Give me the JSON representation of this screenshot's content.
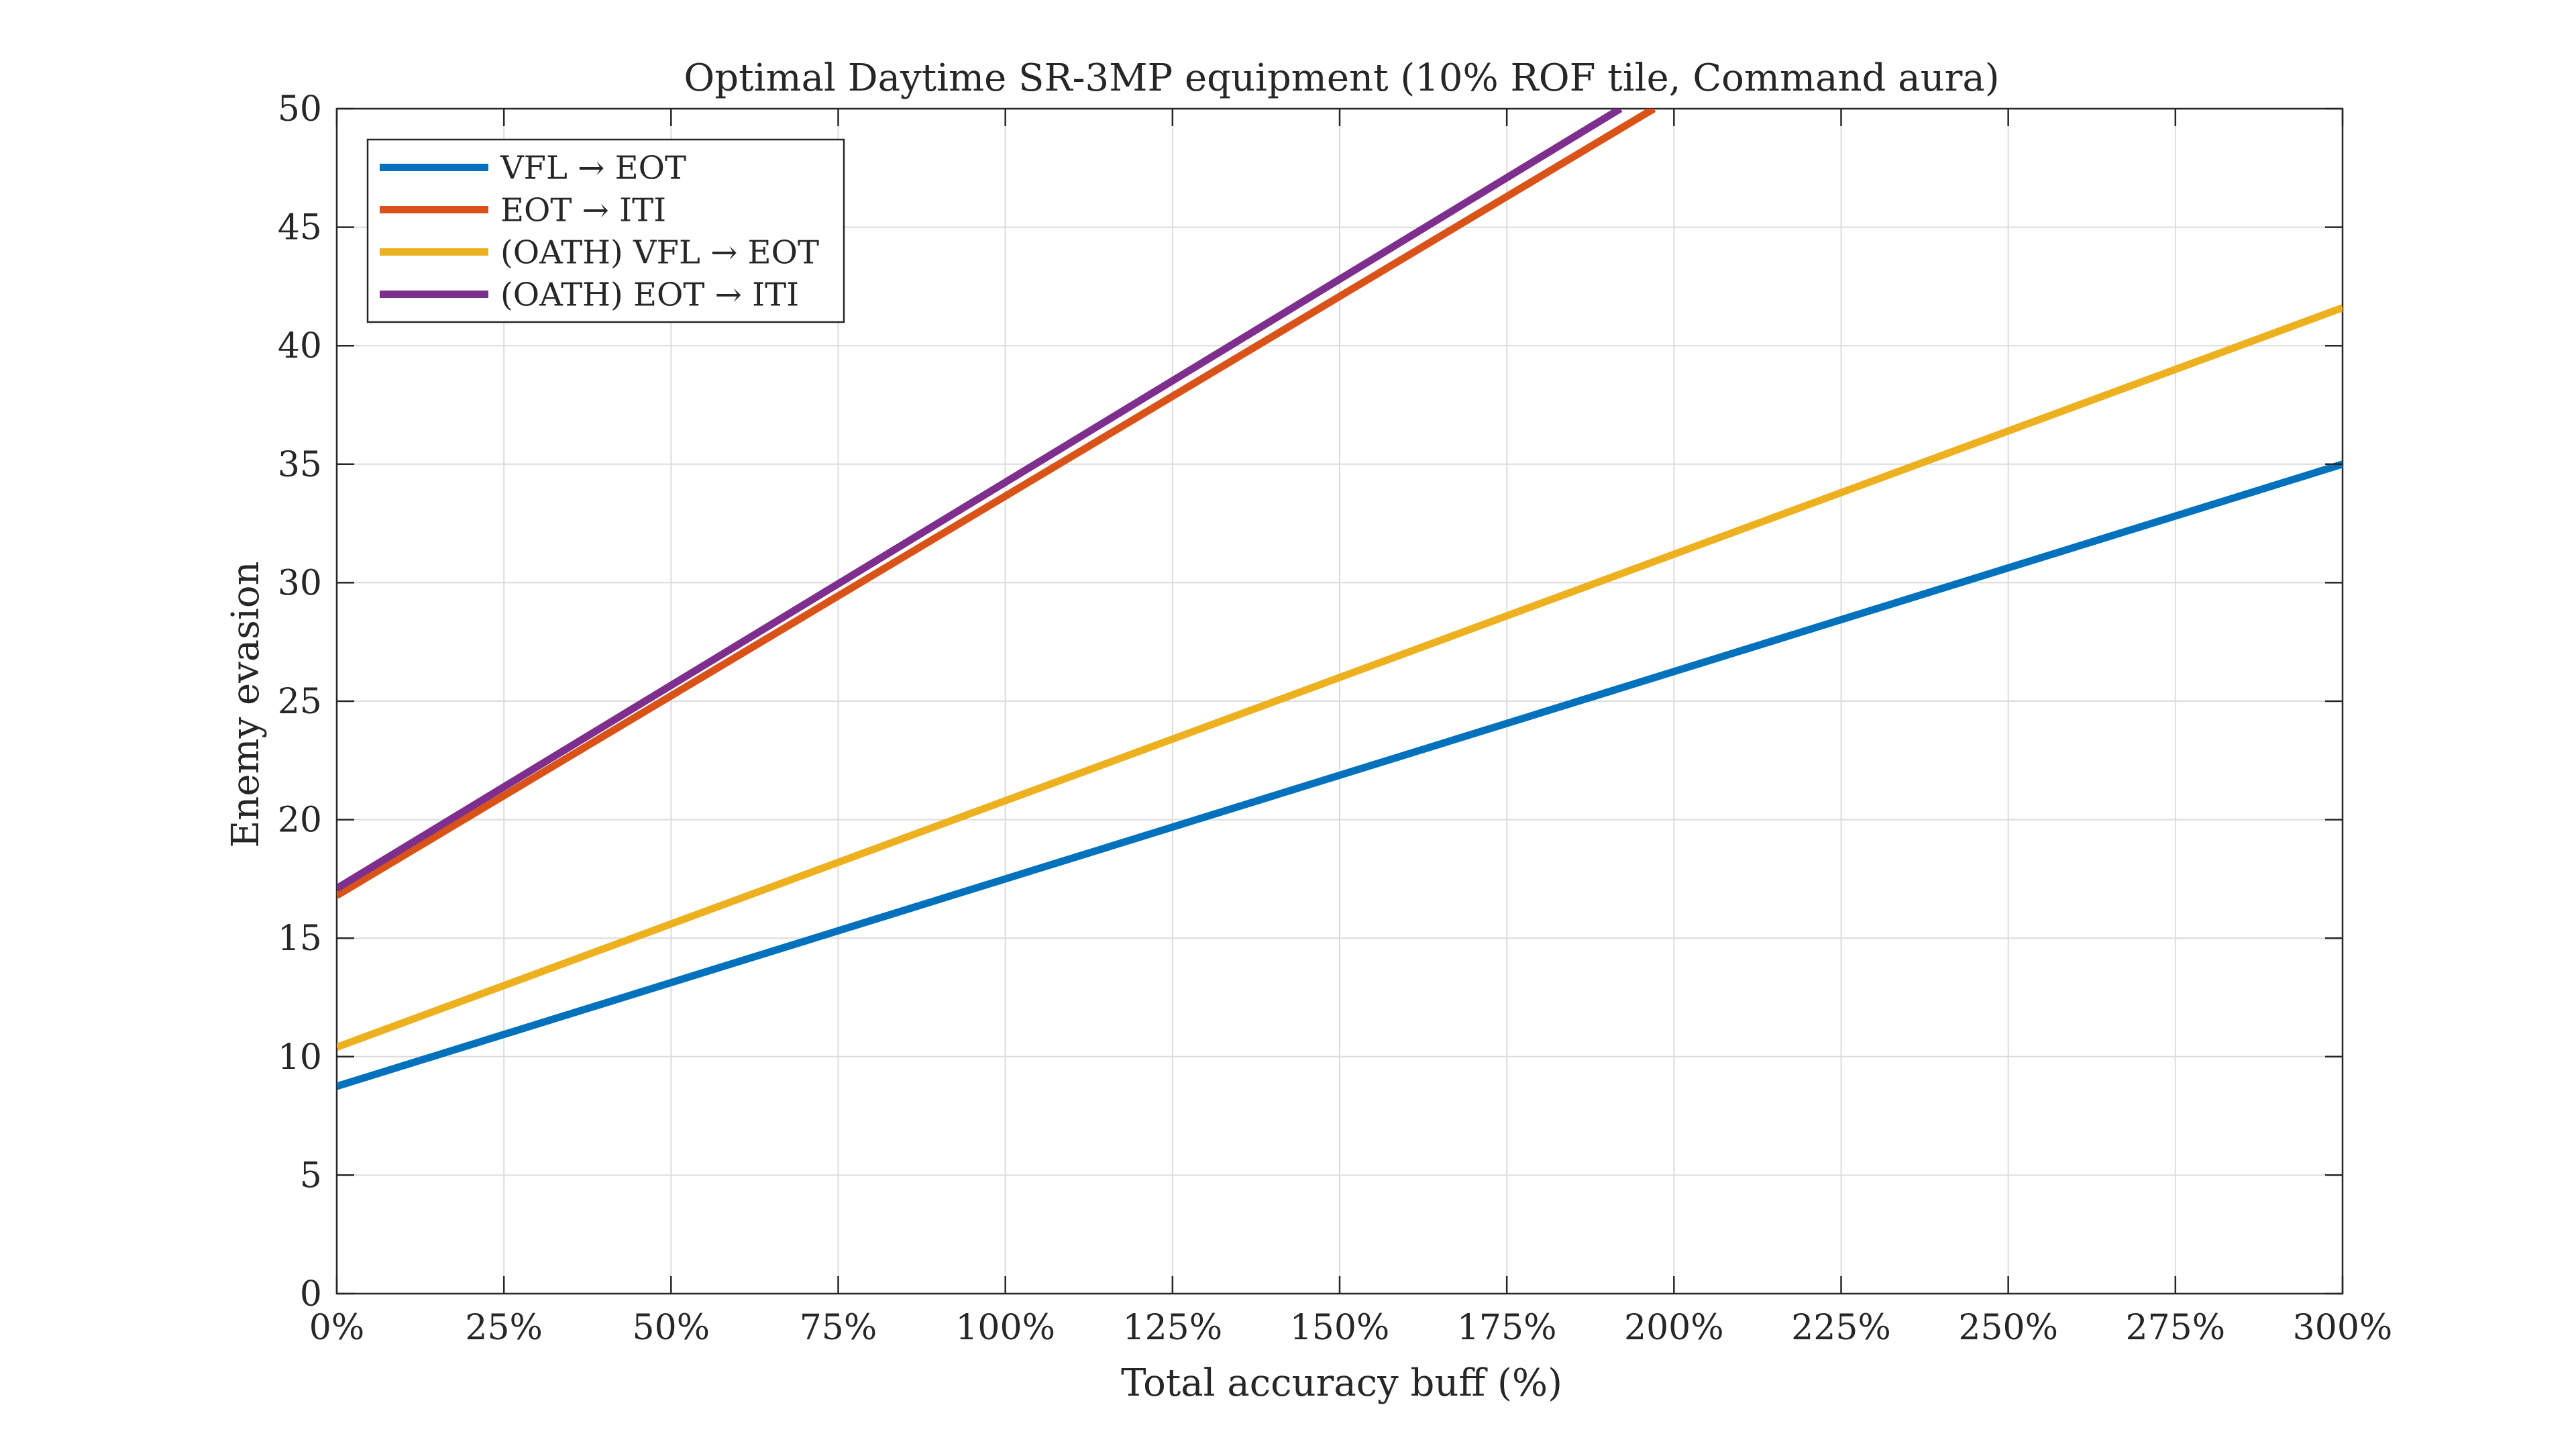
{
  "chart_data": {
    "type": "line",
    "title": "Optimal Daytime SR-3MP equipment (10% ROF tile, Command aura)",
    "xlabel": "Total accuracy buff (%)",
    "ylabel": "Enemy evasion",
    "xlim": [
      0,
      300
    ],
    "ylim": [
      0,
      50
    ],
    "x_ticks": [
      0,
      25,
      50,
      75,
      100,
      125,
      150,
      175,
      200,
      225,
      250,
      275,
      300
    ],
    "x_tick_labels": [
      "0%",
      "25%",
      "50%",
      "75%",
      "100%",
      "125%",
      "150%",
      "175%",
      "200%",
      "225%",
      "250%",
      "275%",
      "300%"
    ],
    "y_ticks": [
      0,
      5,
      10,
      15,
      20,
      25,
      30,
      35,
      40,
      45,
      50
    ],
    "y_tick_labels": [
      "0",
      "5",
      "10",
      "15",
      "20",
      "25",
      "30",
      "35",
      "40",
      "45",
      "50"
    ],
    "grid": true,
    "legend_placement": "top-left",
    "series": [
      {
        "name": "VFL → EOT",
        "color": "#0072BD",
        "x": [
          0,
          300
        ],
        "y": [
          8.75,
          35.0
        ]
      },
      {
        "name": "EOT → ITI",
        "color": "#D95319",
        "x": [
          0,
          197
        ],
        "y": [
          16.8,
          50.0
        ]
      },
      {
        "name": "(OATH) VFL → EOT",
        "color": "#EDB120",
        "x": [
          0,
          300
        ],
        "y": [
          10.4,
          41.6
        ]
      },
      {
        "name": "(OATH) EOT → ITI",
        "color": "#7E2F8E",
        "x": [
          0,
          192
        ],
        "y": [
          17.1,
          50.0
        ]
      }
    ]
  }
}
